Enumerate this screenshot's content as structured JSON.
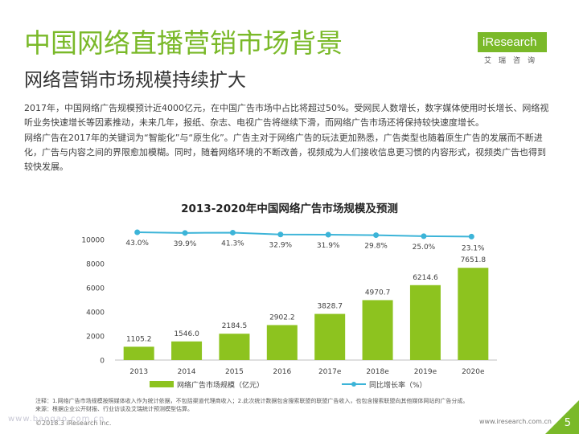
{
  "header": {
    "title": "中国网络直播营销市场背景",
    "subtitle": "网络营销市场规模持续扩大"
  },
  "logo": {
    "brand": "iResearch",
    "cn": "艾瑞咨询"
  },
  "body": {
    "paragraph1": "2017年，中国网络广告规模预计近4000亿元，在中国广告市场中占比将超过50%。受网民人数增长，数字媒体使用时长增长、网络视听业务快速增长等因素推动，未来几年，报纸、杂志、电视广告将继续下滑，而网络广告市场还将保持较快速度增长。",
    "paragraph2": "网络广告在2017年的关键词为“智能化”与“原生化”。广告主对于网络广告的玩法更加熟悉，广告类型也随着原生广告的发展而不断进化，广告与内容之间的界限愈加模糊。同时，随着网络环境的不断改善，视频成为人们接收信息更习惯的内容形式，视频类广告也得到较快发展。"
  },
  "chart_data": {
    "type": "bar",
    "title": "2013-2020年中国网络广告市场规模及预测",
    "categories": [
      "2013",
      "2014",
      "2015",
      "2016",
      "2017e",
      "2018e",
      "2019e",
      "2020e"
    ],
    "series": [
      {
        "name": "网络广告市场规模（亿元）",
        "type": "bar",
        "values": [
          1105.2,
          1546.0,
          2184.5,
          2902.2,
          3828.7,
          4970.7,
          6214.6,
          7651.8
        ],
        "labels": [
          "1105.2",
          "1546.0",
          "2184.5",
          "2902.2",
          "3828.7",
          "4970.7",
          "6214.6",
          "7651.8"
        ]
      },
      {
        "name": "同比增长率（%）",
        "type": "line",
        "values": [
          43.0,
          39.9,
          41.3,
          32.9,
          31.9,
          29.8,
          25.0,
          23.1
        ],
        "labels": [
          "43.0%",
          "39.9%",
          "41.3%",
          "32.9%",
          "31.9%",
          "29.8%",
          "25.0%",
          "23.1%"
        ]
      }
    ],
    "yticks": [
      "0",
      "2000",
      "4000",
      "6000",
      "8000",
      "10000"
    ],
    "ylim": [
      0,
      10000
    ],
    "colors": {
      "bar": "#8dc31f",
      "line": "#3cb4d8"
    }
  },
  "footer": {
    "note": "注释：1.网络广告市场规模按照媒体收入作为统计依据，不包括渠道代理商收入；2.此次统计数据包含搜索联盟的联盟广告收入，也包含搜索联盟向其他媒体网站的广告分成。",
    "source": "来源：根据企业公开财报、行业访谈及艾瑞统计预测模型估算。",
    "copyright": "©2018.3 iResearch Inc.",
    "url": "www.iresearch.com.cn",
    "watermark": "www.baogao.com.cn",
    "page": "5"
  }
}
